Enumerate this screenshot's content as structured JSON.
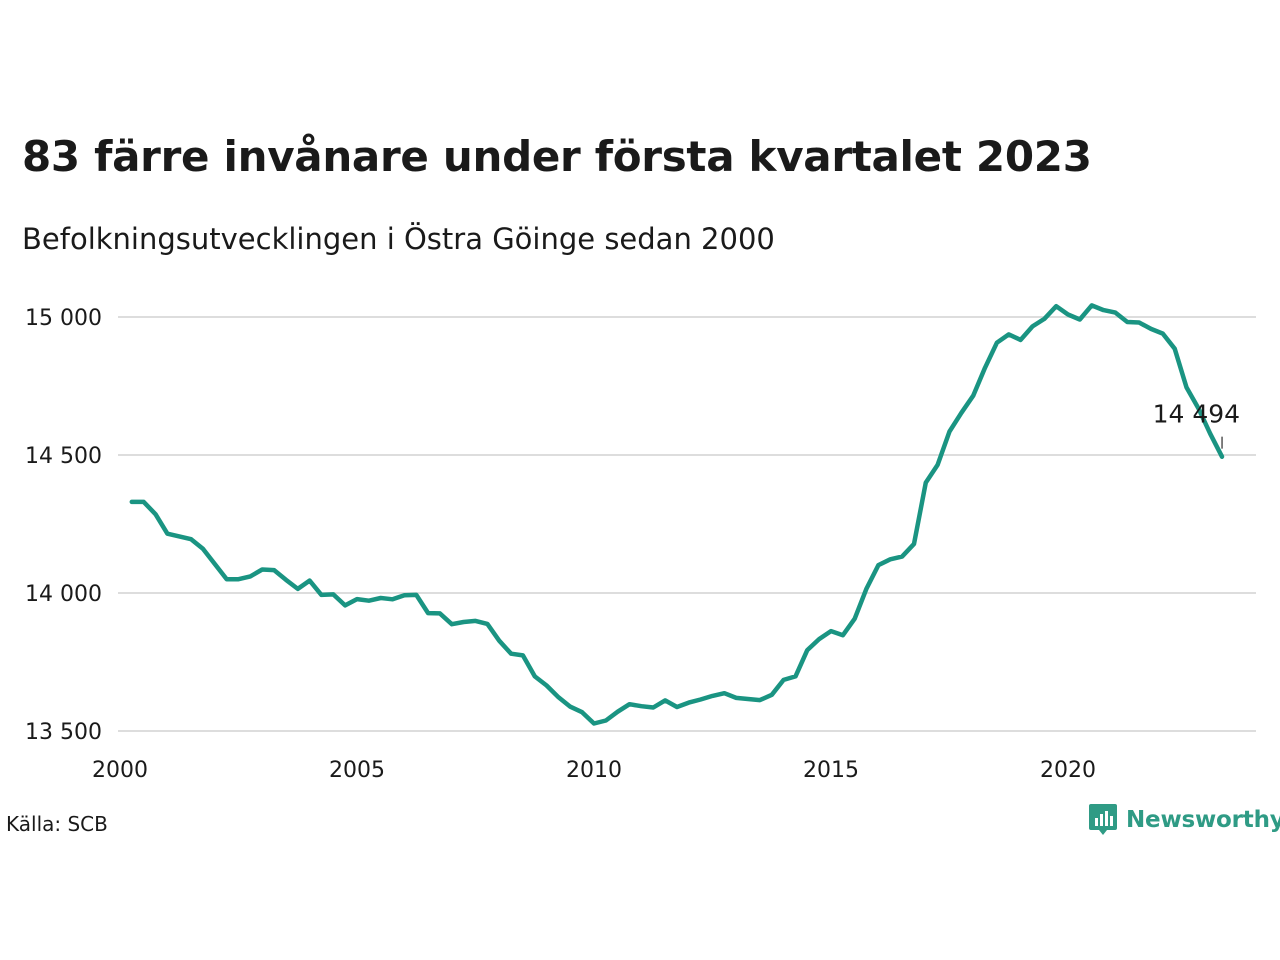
{
  "chart_data": {
    "type": "line",
    "title": "83 färre invånare under första kvartalet 2023",
    "subtitle": "Befolkningsutvecklingen i Östra Göinge sedan 2000",
    "xlabel": "",
    "ylabel": "",
    "xlim": [
      2000,
      2024
    ],
    "ylim": [
      13500,
      15100
    ],
    "y_ticks": [
      13500,
      14000,
      14500,
      15000
    ],
    "y_tick_labels": [
      "13 500",
      "14 000",
      "14 500",
      "15 000"
    ],
    "x_ticks": [
      2000,
      2005,
      2010,
      2015,
      2020
    ],
    "x_tick_labels": [
      "2000",
      "2005",
      "2010",
      "2015",
      "2020"
    ],
    "grid": true,
    "line_color": "#1a9482",
    "series": [
      {
        "x": [
          2000.25,
          2000.5,
          2000.75,
          2001.0,
          2001.25,
          2001.5,
          2001.75,
          2002.0,
          2002.25,
          2002.5,
          2002.75,
          2003.0,
          2003.25,
          2003.5,
          2003.75,
          2004.0,
          2004.25,
          2004.5,
          2004.75,
          2005.0,
          2005.25,
          2005.5,
          2005.75,
          2006.0,
          2006.25,
          2006.5,
          2006.75,
          2007.0,
          2007.25,
          2007.5,
          2007.75,
          2008.0,
          2008.25,
          2008.5,
          2008.75,
          2009.0,
          2009.25,
          2009.5,
          2009.75,
          2010.0,
          2010.25,
          2010.5,
          2010.75,
          2011.0,
          2011.25,
          2011.5,
          2011.75,
          2012.0,
          2012.25,
          2012.5,
          2012.75,
          2013.0,
          2013.25,
          2013.5,
          2013.75,
          2014.0,
          2014.25,
          2014.5,
          2014.75,
          2015.0,
          2015.25,
          2015.5,
          2015.75,
          2016.0,
          2016.25,
          2016.5,
          2016.75,
          2017.0,
          2017.25,
          2017.5,
          2017.75,
          2018.0,
          2018.25,
          2018.5,
          2018.75,
          2019.0,
          2019.25,
          2019.5,
          2019.75,
          2020.0,
          2020.25,
          2020.5,
          2020.75,
          2021.0,
          2021.25,
          2021.5,
          2021.75,
          2022.0,
          2022.25,
          2022.5,
          2022.75,
          2023.0,
          2023.25
        ],
        "values": [
          14330,
          14330,
          14285,
          14215,
          14205,
          14195,
          14160,
          14105,
          14050,
          14050,
          14060,
          14085,
          14083,
          14048,
          14015,
          14045,
          13993,
          13995,
          13955,
          13978,
          13972,
          13982,
          13977,
          13992,
          13993,
          13927,
          13926,
          13887,
          13895,
          13899,
          13888,
          13827,
          13780,
          13774,
          13698,
          13665,
          13622,
          13588,
          13568,
          13527,
          13538,
          13570,
          13597,
          13590,
          13585,
          13611,
          13587,
          13603,
          13614,
          13627,
          13637,
          13620,
          13616,
          13612,
          13631,
          13685,
          13698,
          13793,
          13833,
          13862,
          13847,
          13907,
          14016,
          14101,
          14122,
          14132,
          14178,
          14400,
          14464,
          14585,
          14653,
          14715,
          14816,
          14907,
          14937,
          14917,
          14966,
          14993,
          15039,
          15009,
          14991,
          15042,
          15025,
          15016,
          14982,
          14980,
          14957,
          14940,
          14885,
          14745,
          14670,
          14577,
          14494
        ]
      }
    ],
    "annotation": {
      "x": 2023.25,
      "y": 14494,
      "label": "14 494"
    }
  },
  "source": "Källa: SCB",
  "brand": {
    "name": "Newsworthy",
    "logo_icon": "bar-chart-icon",
    "color": "#2f9b85"
  }
}
